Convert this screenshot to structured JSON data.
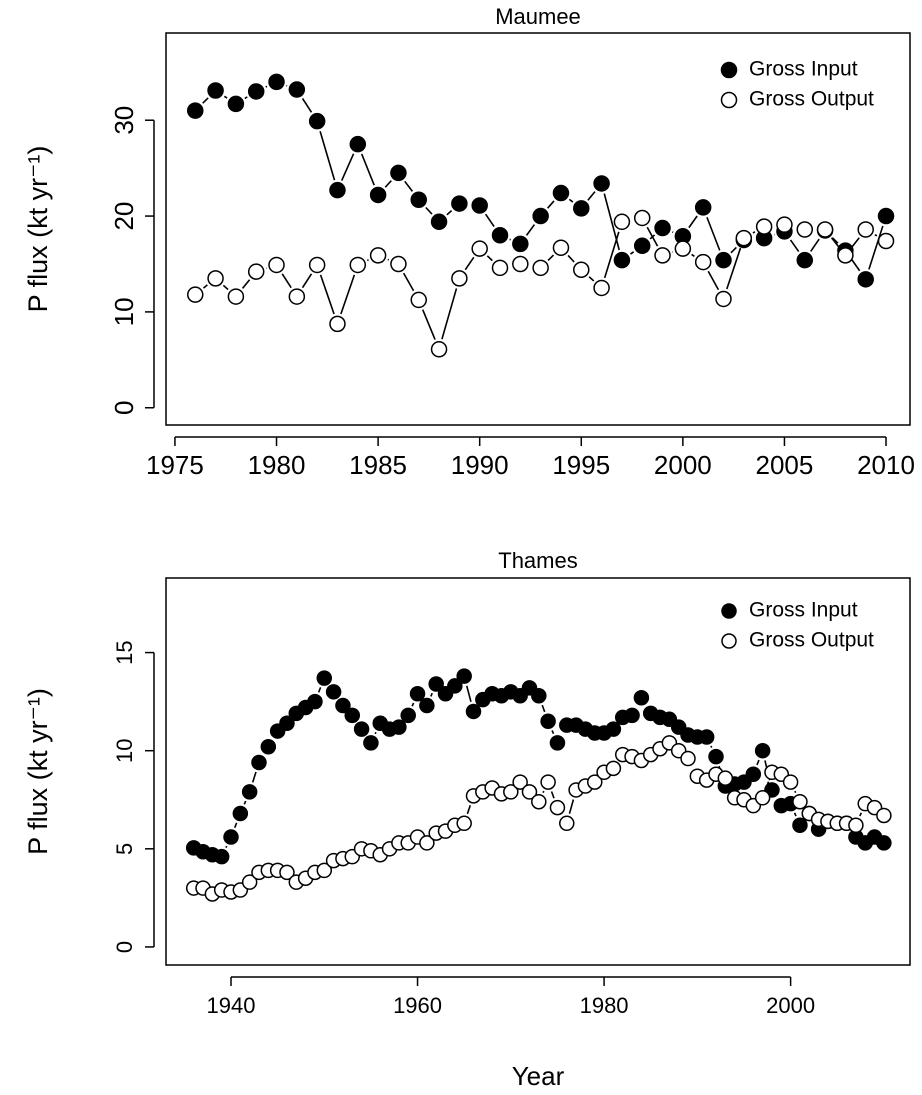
{
  "chart_data": [
    {
      "type": "line",
      "title": "Maumee",
      "ylabel": "P flux (kt yr⁻¹)",
      "x": [
        1976,
        1977,
        1978,
        1979,
        1980,
        1981,
        1982,
        1983,
        1984,
        1985,
        1986,
        1987,
        1988,
        1989,
        1990,
        1991,
        1992,
        1993,
        1994,
        1995,
        1996,
        1997,
        1998,
        1999,
        2000,
        2001,
        2002,
        2003,
        2004,
        2005,
        2006,
        2007,
        2008,
        2009,
        2010
      ],
      "series": [
        {
          "name": "Gross Input",
          "color": "#000000",
          "filled": true,
          "values": [
            31.0,
            33.1,
            31.7,
            33.0,
            34.0,
            33.2,
            29.9,
            22.7,
            27.5,
            22.2,
            24.5,
            21.7,
            19.4,
            21.3,
            21.1,
            18.0,
            17.1,
            20.0,
            22.4,
            20.8,
            23.4,
            15.4,
            16.9,
            18.75,
            17.9,
            20.9,
            15.4,
            17.5,
            17.7,
            18.4,
            15.4,
            18.5,
            16.4,
            13.4,
            20.0
          ]
        },
        {
          "name": "Gross Output",
          "color": "#000000",
          "filled": false,
          "values": [
            11.8,
            13.5,
            11.6,
            14.2,
            14.9,
            11.6,
            14.9,
            8.75,
            14.9,
            15.9,
            15.0,
            11.25,
            6.1,
            13.5,
            16.6,
            14.6,
            15.0,
            14.6,
            16.7,
            14.4,
            12.5,
            19.4,
            19.8,
            15.9,
            16.6,
            15.2,
            11.35,
            17.7,
            18.9,
            19.1,
            18.6,
            18.6,
            15.9,
            18.6,
            17.4
          ]
        }
      ],
      "xlim": [
        1974.56,
        2011.18
      ],
      "xticks": [
        1975,
        1980,
        1985,
        1990,
        1995,
        2000,
        2005,
        2010
      ],
      "ylim": [
        -1.8,
        39.1
      ],
      "yticks": [
        0,
        10,
        20,
        30
      ],
      "legend": "topright"
    },
    {
      "type": "line",
      "title": "Thames",
      "xlabel": "Year",
      "ylabel": "P flux (kt yr⁻¹)",
      "x": [
        1936,
        1937,
        1938,
        1939,
        1940,
        1941,
        1942,
        1943,
        1944,
        1945,
        1946,
        1947,
        1948,
        1949,
        1950,
        1951,
        1952,
        1953,
        1954,
        1955,
        1956,
        1957,
        1958,
        1959,
        1960,
        1961,
        1962,
        1963,
        1964,
        1965,
        1966,
        1967,
        1968,
        1969,
        1970,
        1971,
        1972,
        1973,
        1974,
        1975,
        1976,
        1977,
        1978,
        1979,
        1980,
        1981,
        1982,
        1983,
        1984,
        1985,
        1986,
        1987,
        1988,
        1989,
        1990,
        1991,
        1992,
        1993,
        1994,
        1995,
        1996,
        1997,
        1998,
        1999,
        2000,
        2001,
        2002,
        2003,
        2004,
        2005,
        2006,
        2007,
        2008,
        2009,
        2010
      ],
      "series": [
        {
          "name": "Gross Input",
          "color": "#000000",
          "filled": true,
          "values": [
            5.05,
            4.85,
            4.7,
            4.6,
            5.6,
            6.8,
            7.9,
            9.4,
            10.2,
            11.0,
            11.4,
            11.9,
            12.2,
            12.5,
            13.7,
            13.0,
            12.3,
            11.8,
            11.1,
            10.4,
            11.4,
            11.1,
            11.2,
            11.8,
            12.9,
            12.3,
            13.4,
            12.9,
            13.3,
            13.8,
            12.0,
            12.6,
            12.9,
            12.8,
            13.0,
            12.8,
            13.2,
            12.8,
            11.5,
            10.4,
            11.3,
            11.3,
            11.1,
            10.9,
            10.9,
            11.1,
            11.7,
            11.8,
            12.7,
            11.9,
            11.7,
            11.6,
            11.2,
            10.8,
            10.7,
            10.7,
            9.7,
            8.2,
            8.3,
            8.4,
            8.8,
            10.0,
            8.0,
            7.2,
            7.3,
            6.2,
            6.8,
            6.0,
            6.4,
            6.3,
            6.3,
            5.6,
            5.3,
            5.6,
            5.3
          ]
        },
        {
          "name": "Gross Output",
          "color": "#000000",
          "filled": false,
          "values": [
            3.0,
            3.0,
            2.7,
            2.9,
            2.8,
            2.9,
            3.3,
            3.8,
            3.9,
            3.9,
            3.8,
            3.3,
            3.5,
            3.8,
            3.9,
            4.4,
            4.5,
            4.6,
            5.0,
            4.9,
            4.7,
            5.0,
            5.3,
            5.3,
            5.6,
            5.3,
            5.8,
            5.9,
            6.2,
            6.3,
            7.7,
            7.9,
            8.1,
            7.8,
            7.9,
            8.4,
            7.9,
            7.4,
            8.4,
            7.1,
            6.3,
            8.0,
            8.2,
            8.4,
            8.9,
            9.1,
            9.8,
            9.7,
            9.5,
            9.8,
            10.1,
            10.4,
            10.0,
            9.6,
            8.7,
            8.5,
            8.8,
            8.6,
            7.6,
            7.5,
            7.2,
            7.6,
            8.9,
            8.8,
            8.4,
            7.4,
            6.8,
            6.5,
            6.4,
            6.3,
            6.3,
            6.2,
            7.3,
            7.1,
            6.7
          ]
        }
      ],
      "xlim": [
        1933.03,
        2012.8
      ],
      "xticks": [
        1940,
        1960,
        1980,
        2000
      ],
      "ylim": [
        -0.92,
        18.8
      ],
      "yticks": [
        0,
        5,
        10,
        15
      ],
      "legend": "topright"
    }
  ]
}
